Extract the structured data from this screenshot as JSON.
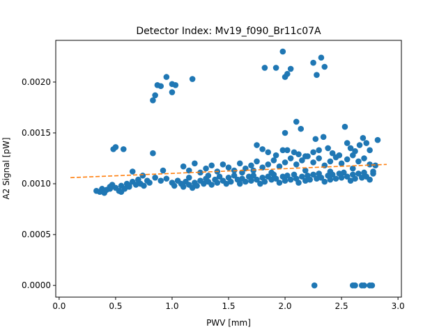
{
  "chart_data": {
    "type": "scatter",
    "title": "Detector Index: Mv19_f090_Br11c07A",
    "xlabel": "PWV [mm]",
    "ylabel": "A2 Signal [pW]",
    "xlim": [
      -0.03,
      3.03
    ],
    "ylim": [
      -0.000115,
      0.00241
    ],
    "xticks": [
      0.0,
      0.5,
      1.0,
      1.5,
      2.0,
      2.5,
      3.0
    ],
    "xtick_labels": [
      "0.0",
      "0.5",
      "1.0",
      "1.5",
      "2.0",
      "2.5",
      "3.0"
    ],
    "yticks": [
      0.0,
      0.0005,
      0.001,
      0.0015,
      0.002
    ],
    "ytick_labels": [
      "0.0000",
      "0.0005",
      "0.0010",
      "0.0015",
      "0.0020"
    ],
    "grid": false,
    "marker_color": "#1f77b4",
    "fit_color": "#ff7f0e",
    "fit_line": {
      "x": [
        0.1,
        2.9
      ],
      "y": [
        0.00106,
        0.00119
      ]
    },
    "series": [
      {
        "name": "data",
        "points": [
          [
            0.36,
            0.00092
          ],
          [
            0.38,
            0.00095
          ],
          [
            0.4,
            0.00091
          ],
          [
            0.42,
            0.00094
          ],
          [
            0.45,
            0.00097
          ],
          [
            0.47,
            0.00099
          ],
          [
            0.5,
            0.00096
          ],
          [
            0.53,
            0.00093
          ],
          [
            0.55,
            0.00098
          ],
          [
            0.58,
            0.00095
          ],
          [
            0.6,
            0.001
          ],
          [
            0.62,
            0.00097
          ],
          [
            0.65,
            0.00102
          ],
          [
            0.68,
            0.00099
          ],
          [
            0.7,
            0.00104
          ],
          [
            0.72,
            0.001
          ],
          [
            0.75,
            0.00098
          ],
          [
            0.78,
            0.00103
          ],
          [
            0.8,
            0.00101
          ],
          [
            0.85,
            0.00106
          ],
          [
            0.9,
            0.00103
          ],
          [
            0.95,
            0.00105
          ],
          [
            1.0,
            0.00101
          ],
          [
            1.02,
            0.00098
          ],
          [
            1.05,
            0.00103
          ],
          [
            1.08,
            0.001
          ],
          [
            1.1,
            0.00097
          ],
          [
            1.12,
            0.00102
          ],
          [
            1.15,
            0.00099
          ],
          [
            1.18,
            0.00096
          ],
          [
            1.2,
            0.00101
          ],
          [
            1.22,
            0.00098
          ],
          [
            1.25,
            0.00103
          ],
          [
            1.28,
            0.001
          ],
          [
            1.3,
            0.00105
          ],
          [
            1.32,
            0.00102
          ],
          [
            1.35,
            0.00099
          ],
          [
            1.38,
            0.00104
          ],
          [
            1.4,
            0.00101
          ],
          [
            1.42,
            0.00107
          ],
          [
            1.45,
            0.00103
          ],
          [
            1.48,
            0.001
          ],
          [
            1.5,
            0.00106
          ],
          [
            1.52,
            0.00102
          ],
          [
            1.55,
            0.00108
          ],
          [
            1.58,
            0.00104
          ],
          [
            1.6,
            0.001
          ],
          [
            1.62,
            0.00105
          ],
          [
            1.65,
            0.00102
          ],
          [
            1.68,
            0.00107
          ],
          [
            1.7,
            0.00103
          ],
          [
            1.72,
            0.00108
          ],
          [
            1.75,
            0.00104
          ],
          [
            1.78,
            0.001
          ],
          [
            1.8,
            0.00106
          ],
          [
            1.82,
            0.00102
          ],
          [
            1.85,
            0.00107
          ],
          [
            1.88,
            0.00104
          ],
          [
            1.9,
            0.00109
          ],
          [
            1.92,
            0.00105
          ],
          [
            1.95,
            0.00101
          ],
          [
            1.98,
            0.00107
          ],
          [
            2.0,
            0.00103
          ],
          [
            2.02,
            0.00108
          ],
          [
            2.05,
            0.00104
          ],
          [
            2.08,
            0.00109
          ],
          [
            2.1,
            0.00105
          ],
          [
            2.12,
            0.00101
          ],
          [
            2.15,
            0.00107
          ],
          [
            2.18,
            0.00103
          ],
          [
            2.2,
            0.00108
          ],
          [
            2.22,
            0.00104
          ],
          [
            2.25,
            0.00109
          ],
          [
            2.28,
            0.00105
          ],
          [
            2.3,
            0.0011
          ],
          [
            2.32,
            0.00106
          ],
          [
            2.35,
            0.00102
          ],
          [
            2.38,
            0.00108
          ],
          [
            2.4,
            0.00104
          ],
          [
            2.42,
            0.00109
          ],
          [
            2.45,
            0.00105
          ],
          [
            2.48,
            0.0011
          ],
          [
            2.5,
            0.00106
          ],
          [
            2.52,
            0.00111
          ],
          [
            2.55,
            0.00107
          ],
          [
            2.58,
            0.00103
          ],
          [
            2.6,
            0.00109
          ],
          [
            2.62,
            0.00105
          ],
          [
            2.65,
            0.0011
          ],
          [
            2.68,
            0.00106
          ],
          [
            2.7,
            0.00111
          ],
          [
            2.72,
            0.00107
          ],
          [
            2.75,
            0.00104
          ],
          [
            2.78,
            0.0011
          ],
          [
            1.1,
            0.00117
          ],
          [
            1.15,
            0.00113
          ],
          [
            1.2,
            0.0012
          ],
          [
            1.25,
            0.00111
          ],
          [
            1.3,
            0.00115
          ],
          [
            1.35,
            0.00118
          ],
          [
            1.4,
            0.00112
          ],
          [
            1.45,
            0.00119
          ],
          [
            1.5,
            0.00116
          ],
          [
            1.55,
            0.00113
          ],
          [
            1.6,
            0.0012
          ],
          [
            1.65,
            0.00115
          ],
          [
            1.7,
            0.00118
          ],
          [
            1.75,
            0.00122
          ],
          [
            1.8,
            0.00116
          ],
          [
            1.85,
            0.00119
          ],
          [
            1.9,
            0.00123
          ],
          [
            1.95,
            0.00117
          ],
          [
            2.0,
            0.00121
          ],
          [
            2.05,
            0.00125
          ],
          [
            2.1,
            0.00119
          ],
          [
            2.15,
            0.00123
          ],
          [
            2.2,
            0.00127
          ],
          [
            2.25,
            0.00121
          ],
          [
            2.3,
            0.00125
          ],
          [
            2.35,
            0.00118
          ],
          [
            2.4,
            0.00122
          ],
          [
            2.45,
            0.00126
          ],
          [
            2.5,
            0.0012
          ],
          [
            2.55,
            0.00124
          ],
          [
            2.6,
            0.00128
          ],
          [
            2.65,
            0.00122
          ],
          [
            2.7,
            0.00125
          ],
          [
            2.75,
            0.00119
          ],
          [
            1.75,
            0.00138
          ],
          [
            1.8,
            0.00134
          ],
          [
            1.85,
            0.00131
          ],
          [
            1.92,
            0.00128
          ],
          [
            1.98,
            0.00133
          ],
          [
            2.02,
            0.00133
          ],
          [
            2.08,
            0.00131
          ],
          [
            2.12,
            0.00129
          ],
          [
            2.18,
            0.00127
          ],
          [
            2.25,
            0.00131
          ],
          [
            2.3,
            0.00133
          ],
          [
            2.38,
            0.00135
          ],
          [
            2.42,
            0.0013
          ],
          [
            2.48,
            0.00128
          ],
          [
            2.55,
            0.0014
          ],
          [
            2.58,
            0.00135
          ],
          [
            2.62,
            0.00132
          ],
          [
            2.66,
            0.00138
          ],
          [
            2.69,
            0.00145
          ],
          [
            2.72,
            0.0014
          ],
          [
            2.75,
            0.00133
          ],
          [
            2.82,
            0.00143
          ],
          [
            2.8,
            0.00118
          ],
          [
            2.78,
            0.00112
          ],
          [
            0.48,
            0.00134
          ],
          [
            0.5,
            0.00136
          ],
          [
            0.57,
            0.00134
          ],
          [
            0.83,
            0.0013
          ],
          [
            2.0,
            0.0015
          ],
          [
            2.1,
            0.00161
          ],
          [
            2.14,
            0.00154
          ],
          [
            2.27,
            0.00144
          ],
          [
            2.34,
            0.00146
          ],
          [
            2.53,
            0.00156
          ],
          [
            0.85,
            0.00187
          ],
          [
            0.83,
            0.00182
          ],
          [
            0.87,
            0.00197
          ],
          [
            0.9,
            0.00196
          ],
          [
            0.95,
            0.00205
          ],
          [
            1.0,
            0.00198
          ],
          [
            1.0,
            0.0019
          ],
          [
            1.03,
            0.00197
          ],
          [
            1.18,
            0.00203
          ],
          [
            1.82,
            0.00214
          ],
          [
            1.92,
            0.00214
          ],
          [
            1.98,
            0.0023
          ],
          [
            2.0,
            0.00205
          ],
          [
            2.02,
            0.00208
          ],
          [
            2.05,
            0.00213
          ],
          [
            2.25,
            0.00219
          ],
          [
            2.28,
            0.00207
          ],
          [
            2.32,
            0.00224
          ],
          [
            2.35,
            0.00215
          ],
          [
            2.26,
            0.0
          ],
          [
            2.6,
            0.0
          ],
          [
            2.62,
            0.0
          ],
          [
            2.68,
            0.0
          ],
          [
            2.7,
            0.0
          ],
          [
            2.75,
            0.0
          ],
          [
            2.77,
            0.0
          ],
          [
            0.65,
            0.00112
          ],
          [
            0.74,
            0.00108
          ],
          [
            0.92,
            0.00113
          ],
          [
            1.15,
            0.00106
          ],
          [
            1.32,
            0.00108
          ],
          [
            1.62,
            0.00111
          ],
          [
            1.72,
            0.00113
          ],
          [
            1.88,
            0.00111
          ],
          [
            2.18,
            0.00113
          ],
          [
            2.4,
            0.00112
          ],
          [
            2.6,
            0.00115
          ],
          [
            0.33,
            0.00093
          ],
          [
            0.55,
            0.00092
          ],
          [
            0.45,
            0.00095
          ],
          [
            0.62,
            0.00098
          ]
        ]
      }
    ]
  }
}
